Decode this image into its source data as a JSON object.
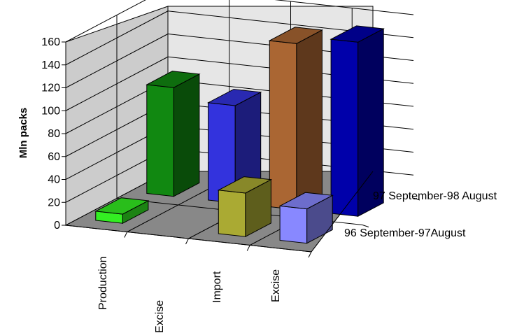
{
  "chart_data": {
    "type": "bar",
    "subtype": "3d-column",
    "ylabel": "Mln packs",
    "ylim": [
      0,
      160
    ],
    "yticks": [
      "0",
      "20",
      "40",
      "60",
      "80",
      "100",
      "120",
      "140",
      "160"
    ],
    "categories": [
      "Production",
      "Excise",
      "Import",
      "Excise"
    ],
    "series_labels": [
      "96 September-97August",
      "97 September-98 August"
    ],
    "grid": true,
    "bars": [
      {
        "category": "Production",
        "series": "96 September-97August",
        "value": 8,
        "color": "#33ee22"
      },
      {
        "category": "Production",
        "series": "97 September-98 August",
        "value": 95,
        "color": "#118811"
      },
      {
        "category": "Excise",
        "series": "96 September-97August",
        "value": 0,
        "color": "#3333dd"
      },
      {
        "category": "Excise",
        "series": "97 September-98 August",
        "value": 85,
        "color": "#3333dd"
      },
      {
        "category": "Import",
        "series": "96 September-97August",
        "value": 38,
        "color": "#aaaa33"
      },
      {
        "category": "Import",
        "series": "97 September-98 August",
        "value": 145,
        "color": "#aa6633"
      },
      {
        "category": "Excise",
        "series": "96 September-97August",
        "value": 30,
        "color": "#8888ff"
      },
      {
        "category": "Excise",
        "series": "97 September-98 August",
        "value": 152,
        "color": "#0000aa"
      }
    ]
  }
}
